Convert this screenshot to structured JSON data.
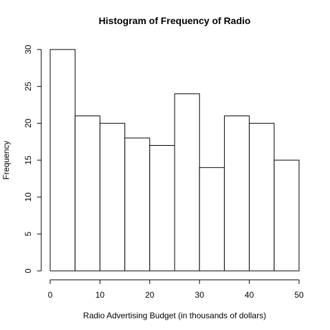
{
  "chart_data": {
    "type": "bar",
    "title": "Histogram of Frequency of Radio",
    "xlabel": "Radio Advertising Budget (in thousands of dollars)",
    "ylabel": "Frequency",
    "bins": [
      {
        "from": 0,
        "to": 5,
        "count": 30
      },
      {
        "from": 5,
        "to": 10,
        "count": 21
      },
      {
        "from": 10,
        "to": 15,
        "count": 20
      },
      {
        "from": 15,
        "to": 20,
        "count": 18
      },
      {
        "from": 20,
        "to": 25,
        "count": 17
      },
      {
        "from": 25,
        "to": 30,
        "count": 24
      },
      {
        "from": 30,
        "to": 35,
        "count": 14
      },
      {
        "from": 35,
        "to": 40,
        "count": 21
      },
      {
        "from": 40,
        "to": 45,
        "count": 20
      },
      {
        "from": 45,
        "to": 50,
        "count": 15
      }
    ],
    "xlim": [
      0,
      50
    ],
    "ylim": [
      0,
      30
    ],
    "xticks": [
      0,
      10,
      20,
      30,
      40,
      50
    ],
    "yticks": [
      0,
      5,
      10,
      15,
      20,
      25,
      30
    ],
    "grid": false,
    "legend": "none"
  }
}
